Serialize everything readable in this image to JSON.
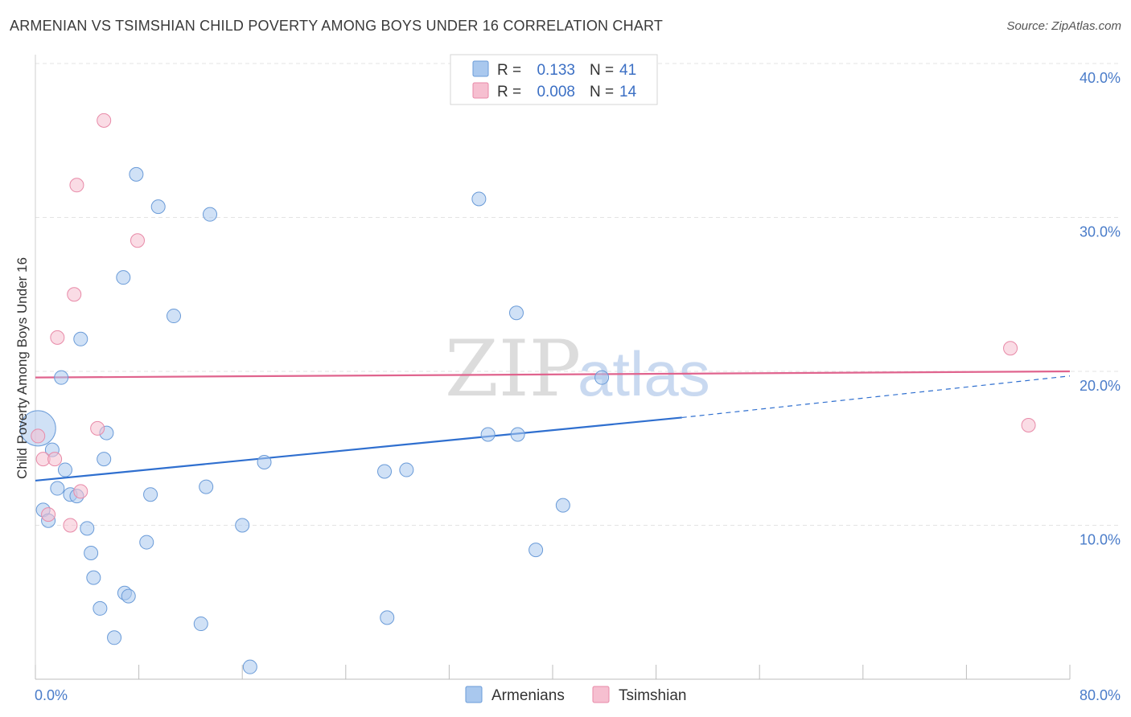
{
  "title": "ARMENIAN VS TSIMSHIAN CHILD POVERTY AMONG BOYS UNDER 16 CORRELATION CHART",
  "source": "Source: ZipAtlas.com",
  "watermark": {
    "zip": "ZIP",
    "atlas": "atlas"
  },
  "colors": {
    "armenian": "#a9c8ee",
    "armenian_stroke": "#6a9bd8",
    "armenian_line": "#2f6fcf",
    "tsimshian": "#f6bfd0",
    "tsimshian_stroke": "#e88aa8",
    "tsimshian_line": "#e0648e"
  },
  "legend": {
    "row1": {
      "r_label": "R =",
      "r_value": "0.133",
      "n_label": "N =",
      "n_value": "41"
    },
    "row2": {
      "r_label": "R =",
      "r_value": "0.008",
      "n_label": "N =",
      "n_value": "14"
    }
  },
  "chart_data": {
    "type": "scatter",
    "xlabel": "",
    "ylabel": "Child Poverty Among Boys Under 16",
    "xlim": [
      0,
      80
    ],
    "ylim": [
      0,
      40
    ],
    "x_tick_labels": [
      "0.0%",
      "80.0%"
    ],
    "y_ticks": [
      10,
      20,
      30,
      40
    ],
    "y_tick_labels": [
      "10.0%",
      "20.0%",
      "30.0%",
      "40.0%"
    ],
    "legend_position": "bottom-center",
    "series": [
      {
        "name": "Armenians",
        "points": [
          [
            7.8,
            32.8
          ],
          [
            9.5,
            30.7
          ],
          [
            13.5,
            30.2
          ],
          [
            34.3,
            31.2
          ],
          [
            6.8,
            26.1
          ],
          [
            10.7,
            23.6
          ],
          [
            3.5,
            22.1
          ],
          [
            37.2,
            23.8
          ],
          [
            2.0,
            19.6
          ],
          [
            43.8,
            19.6
          ],
          [
            0.2,
            16.3
          ],
          [
            5.5,
            16.0
          ],
          [
            1.3,
            14.9
          ],
          [
            5.3,
            14.3
          ],
          [
            17.7,
            14.1
          ],
          [
            2.3,
            13.6
          ],
          [
            27.0,
            13.5
          ],
          [
            28.7,
            13.6
          ],
          [
            35.0,
            15.9
          ],
          [
            37.3,
            15.9
          ],
          [
            1.7,
            12.4
          ],
          [
            2.7,
            12.0
          ],
          [
            3.2,
            11.9
          ],
          [
            8.9,
            12.0
          ],
          [
            13.2,
            12.5
          ],
          [
            0.6,
            11.0
          ],
          [
            1.0,
            10.3
          ],
          [
            4.0,
            9.8
          ],
          [
            16.0,
            10.0
          ],
          [
            40.8,
            11.3
          ],
          [
            4.3,
            8.2
          ],
          [
            8.6,
            8.9
          ],
          [
            38.7,
            8.4
          ],
          [
            4.5,
            6.6
          ],
          [
            5.0,
            4.6
          ],
          [
            6.9,
            5.6
          ],
          [
            7.2,
            5.4
          ],
          [
            12.8,
            3.6
          ],
          [
            6.1,
            2.7
          ],
          [
            27.2,
            4.0
          ],
          [
            16.6,
            0.8
          ]
        ],
        "trend": {
          "x": [
            0,
            50
          ],
          "y": [
            12.9,
            17.0
          ],
          "dashed_to": [
            80,
            19.7
          ]
        }
      },
      {
        "name": "Tsimshian",
        "points": [
          [
            5.3,
            36.3
          ],
          [
            3.2,
            32.1
          ],
          [
            7.9,
            28.5
          ],
          [
            3.0,
            25.0
          ],
          [
            1.7,
            22.2
          ],
          [
            75.4,
            21.5
          ],
          [
            4.8,
            16.3
          ],
          [
            0.2,
            15.8
          ],
          [
            0.6,
            14.3
          ],
          [
            1.5,
            14.3
          ],
          [
            3.5,
            12.2
          ],
          [
            1.0,
            10.7
          ],
          [
            2.7,
            10.0
          ],
          [
            76.8,
            16.5
          ]
        ],
        "trend": {
          "x": [
            0,
            80
          ],
          "y": [
            19.6,
            20.0
          ]
        }
      }
    ]
  }
}
